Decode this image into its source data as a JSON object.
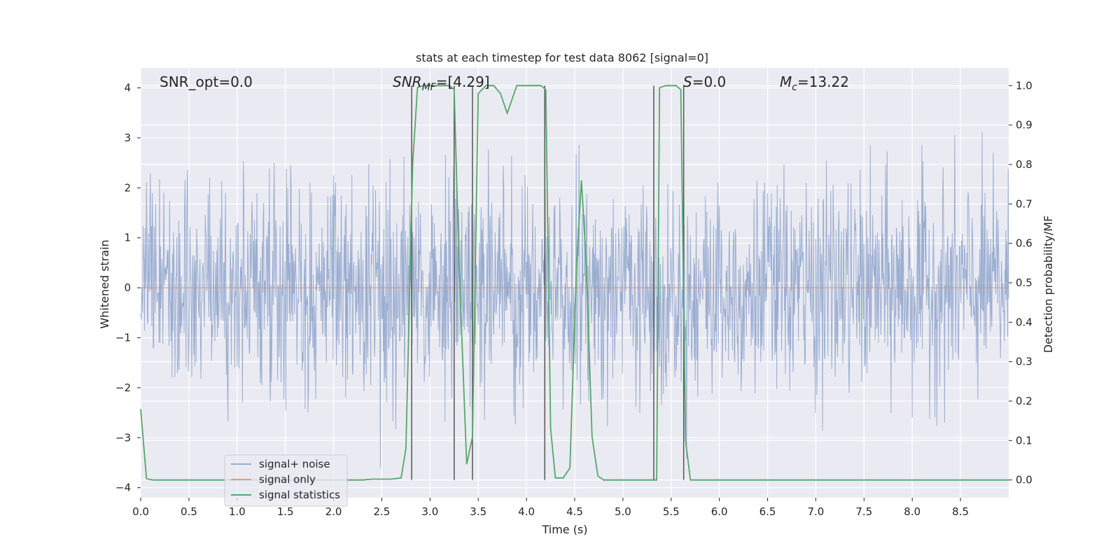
{
  "chart_data": {
    "type": "line",
    "title": "stats at each timestep for test data 8062 [signal=0]",
    "xlabel": "Time (s)",
    "ylabel_left": "Whitened strain",
    "ylabel_right": "Detection probability/MF",
    "xlim": [
      0.0,
      9.0
    ],
    "ylim_left": [
      -4.2,
      4.4
    ],
    "ylim_right": [
      -0.045,
      1.045
    ],
    "x_ticks": [
      "0.0",
      "0.5",
      "1.0",
      "1.5",
      "2.0",
      "2.5",
      "3.0",
      "3.5",
      "4.0",
      "4.5",
      "5.0",
      "5.5",
      "6.0",
      "6.5",
      "7.0",
      "7.5",
      "8.0",
      "8.5"
    ],
    "y_ticks_left": [
      "4",
      "3",
      "2",
      "1",
      "0",
      "−1",
      "−2",
      "−3",
      "−4"
    ],
    "y_ticks_right": [
      "1.0",
      "0.9",
      "0.8",
      "0.7",
      "0.6",
      "0.5",
      "0.4",
      "0.3",
      "0.2",
      "0.1",
      "0.0"
    ],
    "grid": true,
    "legend_position": "lower-left",
    "annotations": {
      "snr_opt": "SNR_opt=0.0",
      "snr_mf_label": "SNR",
      "snr_mf_sub": "MF",
      "snr_mf_value": "=[4.29]",
      "s_label": "S",
      "s_value": "=0.0",
      "mc_label": "M",
      "mc_sub": "c",
      "mc_value": "=13.22"
    },
    "series": [
      {
        "name": "signal+ noise",
        "color": "#4c72b0",
        "style": "noise",
        "amplitude_range": [
          -3.6,
          3.9
        ],
        "typical_std": 1.0
      },
      {
        "name": "signal only",
        "color": "#dd8452",
        "x": [
          0.0,
          9.0
        ],
        "y": [
          0.0,
          0.0
        ]
      },
      {
        "name": "signal statistics",
        "color": "#55a868",
        "axis": "right",
        "x": [
          0.0,
          0.06,
          0.13,
          0.5,
          1.0,
          1.5,
          2.0,
          2.3,
          2.4,
          2.6,
          2.7,
          2.75,
          2.82,
          2.87,
          2.93,
          3.0,
          3.1,
          3.2,
          3.25,
          3.3,
          3.38,
          3.44,
          3.5,
          3.58,
          3.66,
          3.73,
          3.8,
          3.9,
          4.0,
          4.1,
          4.15,
          4.2,
          4.25,
          4.3,
          4.38,
          4.45,
          4.52,
          4.57,
          4.62,
          4.68,
          4.74,
          4.8,
          4.88,
          5.0,
          5.3,
          5.35,
          5.38,
          5.45,
          5.55,
          5.6,
          5.65,
          5.7,
          5.8,
          6.5,
          7.0,
          8.0,
          9.0
        ],
        "y": [
          0.18,
          0.003,
          0.0,
          0.0,
          0.0,
          0.0,
          0.0,
          0.0,
          0.002,
          0.002,
          0.005,
          0.08,
          0.8,
          0.995,
          1.0,
          1.0,
          1.0,
          1.0,
          0.99,
          0.55,
          0.04,
          0.11,
          0.98,
          1.0,
          1.0,
          0.98,
          0.93,
          1.0,
          1.0,
          1.0,
          1.0,
          0.99,
          0.13,
          0.005,
          0.005,
          0.03,
          0.55,
          0.76,
          0.55,
          0.11,
          0.01,
          0.0,
          0.0,
          0.0,
          0.0,
          0.0,
          0.995,
          1.0,
          1.0,
          0.99,
          0.1,
          0.0,
          0.0,
          0.0,
          0.0,
          0.0,
          0.0
        ]
      }
    ],
    "vertical_lines": [
      {
        "x": 2.81,
        "y_top": 1.0,
        "y_bottom": 0.0
      },
      {
        "x": 3.25,
        "y_top": 1.0,
        "y_bottom": 0.0
      },
      {
        "x": 3.44,
        "y_top": 1.0,
        "y_bottom": 0.0
      },
      {
        "x": 4.19,
        "y_top": 1.0,
        "y_bottom": 0.0
      },
      {
        "x": 5.32,
        "y_top": 1.0,
        "y_bottom": 0.0
      },
      {
        "x": 5.63,
        "y_top": 1.0,
        "y_bottom": 0.0
      }
    ],
    "colors": {
      "background": "#eaeaf2",
      "grid": "#ffffff",
      "text": "#262626",
      "vline": "#555555"
    }
  }
}
